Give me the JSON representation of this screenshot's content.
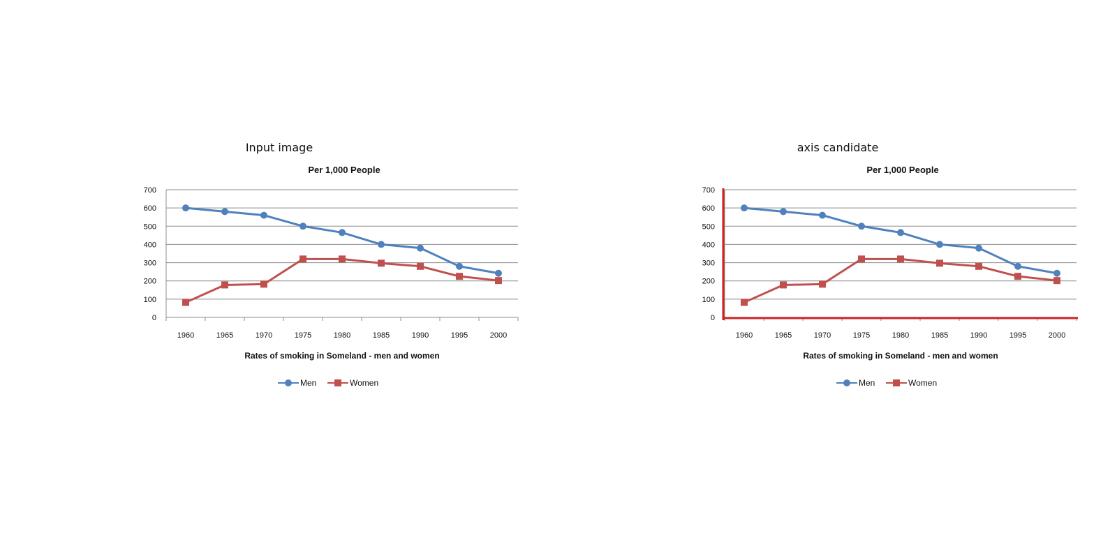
{
  "panels": [
    {
      "heading": "Input image",
      "highlight_axes": false
    },
    {
      "heading": "axis candidate",
      "highlight_axes": true
    }
  ],
  "colors": {
    "men": "#4f81bd",
    "women": "#c0504d",
    "grid": "#8c8c8c",
    "axis_highlight": "#cc2222"
  },
  "chart_data": [
    {
      "type": "line",
      "title": "Per 1,000 People",
      "xlabel": "Rates of smoking in Someland - men and women",
      "ylabel": "",
      "categories": [
        "1960",
        "1965",
        "1970",
        "1975",
        "1980",
        "1985",
        "1990",
        "1995",
        "2000"
      ],
      "yticks": [
        "0",
        "100",
        "200",
        "300",
        "400",
        "500",
        "600",
        "700"
      ],
      "ylim": [
        0,
        700
      ],
      "grid": true,
      "legend": "bottom",
      "series": [
        {
          "name": "Men",
          "marker": "circle",
          "color": "#4f81bd",
          "values": [
            600,
            580,
            560,
            500,
            465,
            400,
            380,
            280,
            242
          ]
        },
        {
          "name": "Women",
          "marker": "square",
          "color": "#c0504d",
          "values": [
            82,
            178,
            182,
            320,
            320,
            297,
            280,
            225,
            202
          ]
        }
      ]
    },
    {
      "type": "line",
      "title": "Per 1,000 People",
      "xlabel": "Rates of smoking in Someland - men and women",
      "ylabel": "",
      "categories": [
        "1960",
        "1965",
        "1970",
        "1975",
        "1980",
        "1985",
        "1990",
        "1995",
        "2000"
      ],
      "yticks": [
        "0",
        "100",
        "200",
        "300",
        "400",
        "500",
        "600",
        "700"
      ],
      "ylim": [
        0,
        700
      ],
      "grid": true,
      "legend": "bottom",
      "series": [
        {
          "name": "Men",
          "marker": "circle",
          "color": "#4f81bd",
          "values": [
            600,
            580,
            560,
            500,
            465,
            400,
            380,
            280,
            242
          ]
        },
        {
          "name": "Women",
          "marker": "square",
          "color": "#c0504d",
          "values": [
            82,
            178,
            182,
            320,
            320,
            297,
            280,
            225,
            202
          ]
        }
      ]
    }
  ]
}
